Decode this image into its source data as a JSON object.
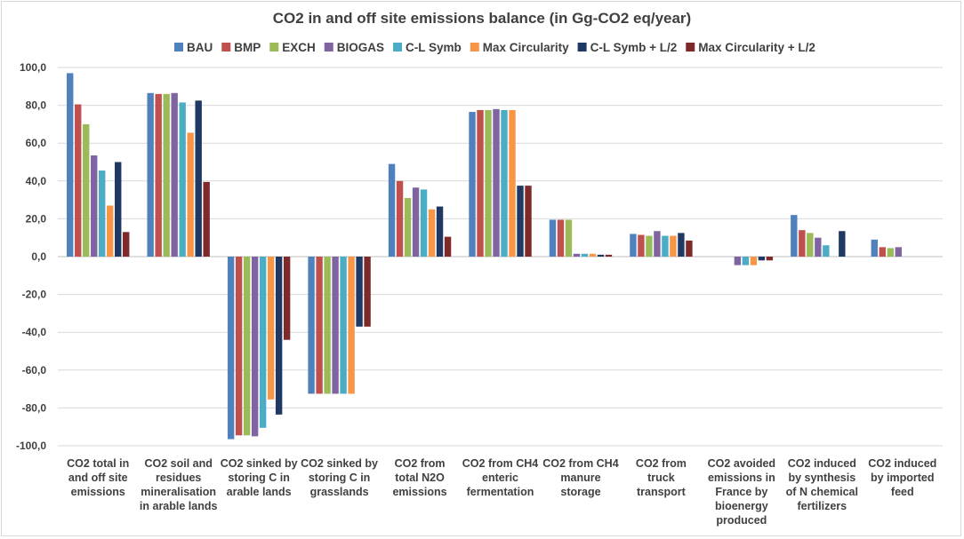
{
  "chart_data": {
    "type": "bar",
    "title": "CO2 in and off site emissions balance (in Gg-CO2 eq/year)",
    "xlabel": "",
    "ylabel": "",
    "ylim": [
      -100,
      100
    ],
    "ytick_step": 20,
    "ytick_labels": [
      "100,0",
      "80,0",
      "60,0",
      "40,0",
      "20,0",
      "0,0",
      "-20,0",
      "-40,0",
      "-60,0",
      "-80,0",
      "-100,0"
    ],
    "legend_position": "top",
    "grid": true,
    "categories": [
      [
        "CO2 total in",
        "and off site",
        "emissions"
      ],
      [
        "CO2 soil and",
        "residues",
        "mineralisation",
        "in arable lands"
      ],
      [
        "CO2 sinked by",
        "storing C in",
        "arable lands"
      ],
      [
        "CO2 sinked by",
        "storing C in",
        "grasslands"
      ],
      [
        "CO2 from",
        "total N2O",
        "emissions"
      ],
      [
        "CO2 from CH4",
        "enteric",
        "fermentation"
      ],
      [
        "CO2 from CH4",
        "manure",
        "storage"
      ],
      [
        "CO2 from",
        "truck",
        "transport"
      ],
      [
        "CO2 avoided",
        "emissions in",
        "France by",
        "bioenergy",
        "produced"
      ],
      [
        "CO2 induced",
        "by synthesis",
        "of N chemical",
        "fertilizers"
      ],
      [
        "CO2 induced",
        "by imported",
        "feed"
      ]
    ],
    "series": [
      {
        "name": "BAU",
        "color": "#4f81bd",
        "values": [
          97,
          86.5,
          -96.5,
          -72.5,
          49,
          76.5,
          19.5,
          12,
          0,
          22,
          9
        ]
      },
      {
        "name": "BMP",
        "color": "#c0504d",
        "values": [
          80.5,
          86,
          -94.5,
          -72.5,
          40,
          77.5,
          19.5,
          11.5,
          0,
          14,
          5
        ]
      },
      {
        "name": "EXCH",
        "color": "#9bbb59",
        "values": [
          70,
          86,
          -94.5,
          -72.5,
          31,
          77.5,
          19.5,
          11,
          0,
          12.5,
          4.5
        ]
      },
      {
        "name": "BIOGAS",
        "color": "#8064a2",
        "values": [
          53.5,
          86.5,
          -95,
          -72.5,
          36.5,
          78,
          1.5,
          13.5,
          -4.5,
          10,
          5
        ]
      },
      {
        "name": "C-L Symb",
        "color": "#4bacc6",
        "values": [
          45.5,
          81.5,
          -90.5,
          -72.5,
          35.5,
          77.5,
          1.5,
          11,
          -4.5,
          6,
          0
        ]
      },
      {
        "name": "Max Circularity",
        "color": "#f79646",
        "values": [
          27,
          65.5,
          -75.5,
          -72.5,
          25,
          77.5,
          1.5,
          11,
          -4.5,
          0,
          0
        ]
      },
      {
        "name": "C-L Symb + L/2",
        "color": "#1f3864",
        "values": [
          50,
          82.5,
          -83.5,
          -37,
          26.5,
          37.5,
          1,
          12.5,
          -2,
          13.5,
          0
        ]
      },
      {
        "name": "Max Circularity + L/2",
        "color": "#7f2a2a",
        "values": [
          13,
          39.5,
          -44,
          -37,
          10.5,
          37.5,
          1,
          8.5,
          -2,
          0,
          0
        ]
      }
    ]
  }
}
